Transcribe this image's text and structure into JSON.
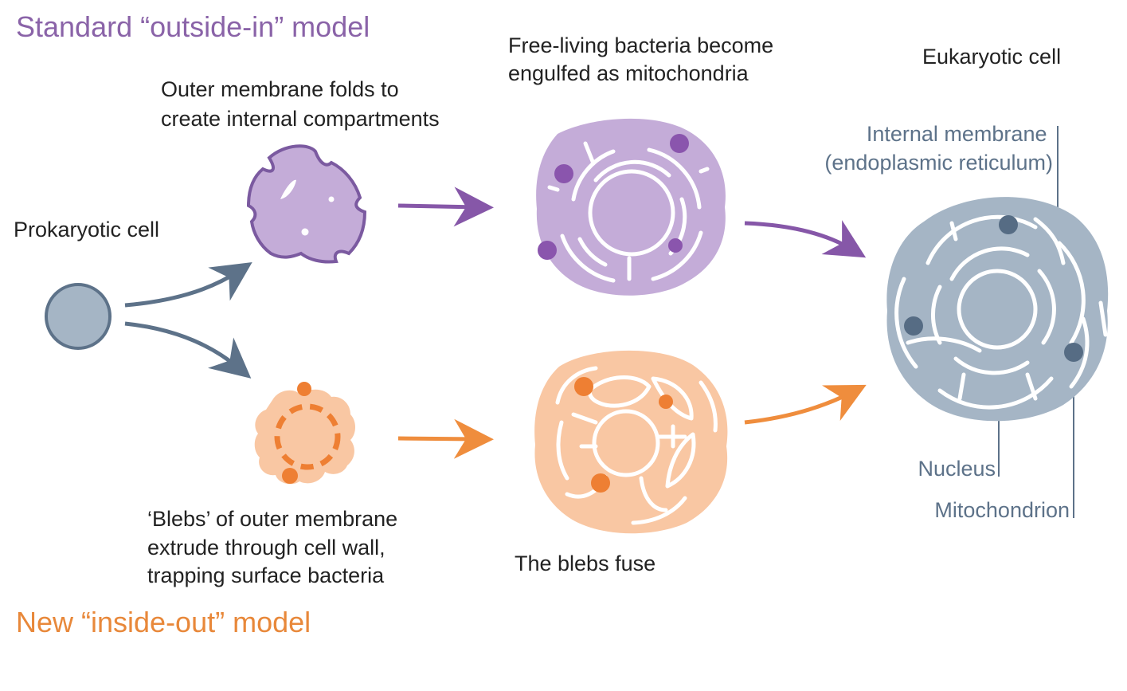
{
  "header": {
    "standard_model": "Standard “outside-in” model",
    "new_model": "New “inside-out” model"
  },
  "labels": {
    "prokaryotic_cell": "Prokaryotic cell",
    "outer_membrane_folds": [
      "Outer membrane folds to",
      "create internal compartments"
    ],
    "free_living_bacteria": [
      "Free-living bacteria become",
      "engulfed as mitochondria"
    ],
    "eukaryotic_cell": "Eukaryotic cell",
    "internal_membrane": [
      "Internal membrane",
      "(endoplasmic reticulum)"
    ],
    "blebs_extrude": [
      "‘Blebs’ of outer membrane",
      "extrude through cell wall,",
      "trapping surface bacteria"
    ],
    "blebs_fuse": "The blebs fuse",
    "nucleus": "Nucleus",
    "mitochondrion": "Mitochondrion"
  },
  "colors": {
    "purple_title": "#8a63a8",
    "orange_title": "#e8883a",
    "purple_fill": "#c4acd8",
    "purple_stroke": "#7b5aa0",
    "purple_arrow": "#8657a8",
    "purple_dot": "#8a55ad",
    "orange_fill": "#f9c7a3",
    "orange_arrow": "#ef8d3d",
    "orange_dot": "#ee7f33",
    "blue_fill": "#a5b5c5",
    "blue_stroke": "#5d7289",
    "blue_arrow": "#5d7289",
    "blue_dot": "#566c84",
    "blue_text": "#5d7289",
    "text": "#222222"
  }
}
